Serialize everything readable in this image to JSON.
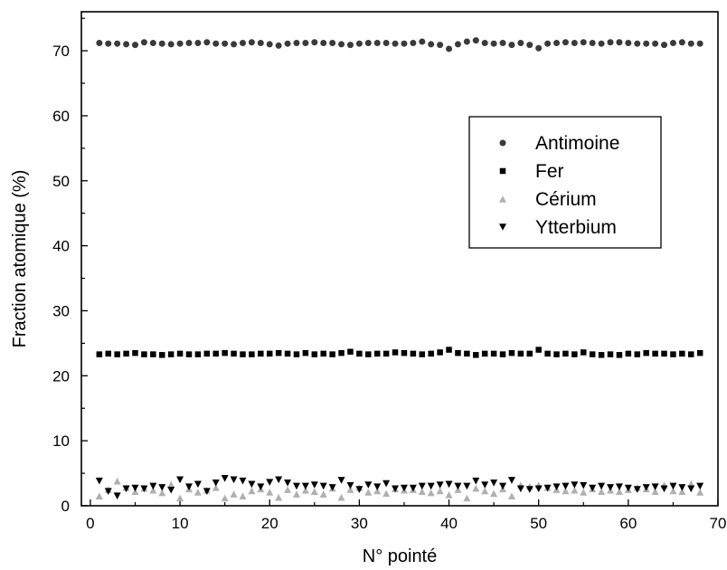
{
  "chart_data": {
    "type": "scatter",
    "xlabel": "N° pointé",
    "ylabel": "Fraction  atomique  (%)",
    "xlim": [
      -1,
      70
    ],
    "ylim": [
      0,
      76
    ],
    "x_ticks": [
      0,
      10,
      20,
      30,
      40,
      50,
      60,
      70
    ],
    "y_ticks": [
      0,
      10,
      20,
      30,
      40,
      50,
      60,
      70
    ],
    "grid": false,
    "legend_position": "right",
    "series": [
      {
        "name": "Antimoine",
        "marker": "circle",
        "color": "#3a3a3a",
        "x": [
          1,
          2,
          3,
          4,
          5,
          6,
          7,
          8,
          9,
          10,
          11,
          12,
          13,
          14,
          15,
          16,
          17,
          18,
          19,
          20,
          21,
          22,
          23,
          24,
          25,
          26,
          27,
          28,
          29,
          30,
          31,
          32,
          33,
          34,
          35,
          36,
          37,
          38,
          39,
          40,
          41,
          42,
          43,
          44,
          45,
          46,
          47,
          48,
          49,
          50,
          51,
          52,
          53,
          54,
          55,
          56,
          57,
          58,
          59,
          60,
          61,
          62,
          63,
          64,
          65,
          66,
          67,
          68
        ],
        "values": [
          71.2,
          71.1,
          71.1,
          71.0,
          70.9,
          71.3,
          71.2,
          71.1,
          71.0,
          71.1,
          71.2,
          71.2,
          71.3,
          71.1,
          71.1,
          71.0,
          71.2,
          71.3,
          71.2,
          71.0,
          70.8,
          71.1,
          71.2,
          71.2,
          71.3,
          71.2,
          71.2,
          71.0,
          70.9,
          71.1,
          71.2,
          71.2,
          71.2,
          71.1,
          71.1,
          71.2,
          71.4,
          71.0,
          70.9,
          70.3,
          71.0,
          71.4,
          71.6,
          71.2,
          71.1,
          71.2,
          70.9,
          71.2,
          70.9,
          70.4,
          71.1,
          71.2,
          71.3,
          71.2,
          71.3,
          71.2,
          71.1,
          71.3,
          71.3,
          71.2,
          71.1,
          71.1,
          71.1,
          70.9,
          71.2,
          71.3,
          71.1,
          71.1
        ]
      },
      {
        "name": "Fer",
        "marker": "square",
        "color": "#000000",
        "x": [
          1,
          2,
          3,
          4,
          5,
          6,
          7,
          8,
          9,
          10,
          11,
          12,
          13,
          14,
          15,
          16,
          17,
          18,
          19,
          20,
          21,
          22,
          23,
          24,
          25,
          26,
          27,
          28,
          29,
          30,
          31,
          32,
          33,
          34,
          35,
          36,
          37,
          38,
          39,
          40,
          41,
          42,
          43,
          44,
          45,
          46,
          47,
          48,
          49,
          50,
          51,
          52,
          53,
          54,
          55,
          56,
          57,
          58,
          59,
          60,
          61,
          62,
          63,
          64,
          65,
          66,
          67,
          68
        ],
        "values": [
          23.3,
          23.4,
          23.3,
          23.4,
          23.5,
          23.3,
          23.3,
          23.2,
          23.3,
          23.4,
          23.3,
          23.3,
          23.4,
          23.4,
          23.5,
          23.4,
          23.3,
          23.3,
          23.4,
          23.4,
          23.5,
          23.4,
          23.3,
          23.5,
          23.3,
          23.4,
          23.3,
          23.5,
          23.7,
          23.4,
          23.3,
          23.4,
          23.4,
          23.6,
          23.5,
          23.4,
          23.3,
          23.4,
          23.6,
          24.0,
          23.5,
          23.4,
          23.2,
          23.4,
          23.4,
          23.3,
          23.5,
          23.4,
          23.4,
          24.0,
          23.4,
          23.3,
          23.4,
          23.3,
          23.6,
          23.3,
          23.2,
          23.3,
          23.2,
          23.4,
          23.3,
          23.5,
          23.4,
          23.4,
          23.3,
          23.4,
          23.3,
          23.5
        ]
      },
      {
        "name": "Cérium",
        "marker": "triangle-up",
        "color": "#b0b0b0",
        "x": [
          1,
          2,
          3,
          4,
          5,
          6,
          7,
          8,
          9,
          10,
          11,
          12,
          13,
          14,
          15,
          16,
          17,
          18,
          19,
          20,
          21,
          22,
          23,
          24,
          25,
          26,
          27,
          28,
          29,
          30,
          31,
          32,
          33,
          34,
          35,
          36,
          37,
          38,
          39,
          40,
          41,
          42,
          43,
          44,
          45,
          46,
          47,
          48,
          49,
          50,
          51,
          52,
          53,
          54,
          55,
          56,
          57,
          58,
          59,
          60,
          61,
          62,
          63,
          64,
          65,
          66,
          67,
          68
        ],
        "values": [
          1.5,
          2.5,
          3.8,
          2.8,
          2.2,
          2.7,
          2.4,
          2.0,
          3.3,
          1.2,
          2.6,
          2.1,
          2.4,
          2.8,
          1.2,
          1.8,
          1.5,
          2.3,
          2.6,
          2.1,
          1.3,
          2.5,
          1.8,
          2.4,
          2.2,
          1.8,
          2.7,
          1.3,
          2.5,
          2.8,
          2.1,
          2.3,
          1.9,
          2.6,
          2.4,
          2.5,
          2.2,
          2.0,
          2.3,
          1.7,
          2.5,
          1.2,
          2.7,
          2.3,
          1.9,
          2.6,
          1.5,
          3.2,
          3.0,
          3.2,
          2.8,
          2.5,
          2.3,
          2.4,
          2.1,
          2.6,
          2.2,
          2.4,
          2.2,
          2.5,
          2.8,
          2.6,
          2.2,
          3.2,
          2.3,
          2.2,
          3.4,
          2.1
        ]
      },
      {
        "name": "Ytterbium",
        "marker": "triangle-down",
        "color": "#000000",
        "x": [
          1,
          2,
          3,
          4,
          5,
          6,
          7,
          8,
          9,
          10,
          11,
          12,
          13,
          14,
          15,
          16,
          17,
          18,
          19,
          20,
          21,
          22,
          23,
          24,
          25,
          26,
          27,
          28,
          29,
          30,
          31,
          32,
          33,
          34,
          35,
          36,
          37,
          38,
          39,
          40,
          41,
          42,
          43,
          44,
          45,
          46,
          47,
          48,
          49,
          50,
          51,
          52,
          53,
          54,
          55,
          56,
          57,
          58,
          59,
          60,
          61,
          62,
          63,
          64,
          65,
          66,
          67,
          68
        ],
        "values": [
          3.8,
          2.2,
          1.5,
          2.6,
          2.7,
          2.6,
          3.0,
          2.8,
          2.4,
          4.0,
          2.9,
          3.3,
          2.2,
          3.5,
          4.2,
          4.0,
          3.8,
          3.3,
          2.9,
          3.6,
          4.0,
          3.5,
          3.0,
          3.0,
          3.2,
          3.0,
          2.8,
          3.9,
          3.1,
          2.5,
          3.2,
          2.9,
          3.4,
          2.6,
          2.7,
          2.7,
          3.0,
          3.0,
          3.2,
          3.3,
          3.0,
          3.0,
          3.8,
          3.2,
          3.5,
          3.0,
          3.9,
          2.6,
          2.5,
          2.6,
          2.7,
          2.9,
          3.0,
          3.2,
          3.1,
          2.7,
          3.0,
          2.8,
          2.9,
          2.7,
          2.5,
          2.8,
          2.9,
          2.6,
          3.0,
          2.8,
          2.6,
          3.0
        ]
      }
    ]
  }
}
